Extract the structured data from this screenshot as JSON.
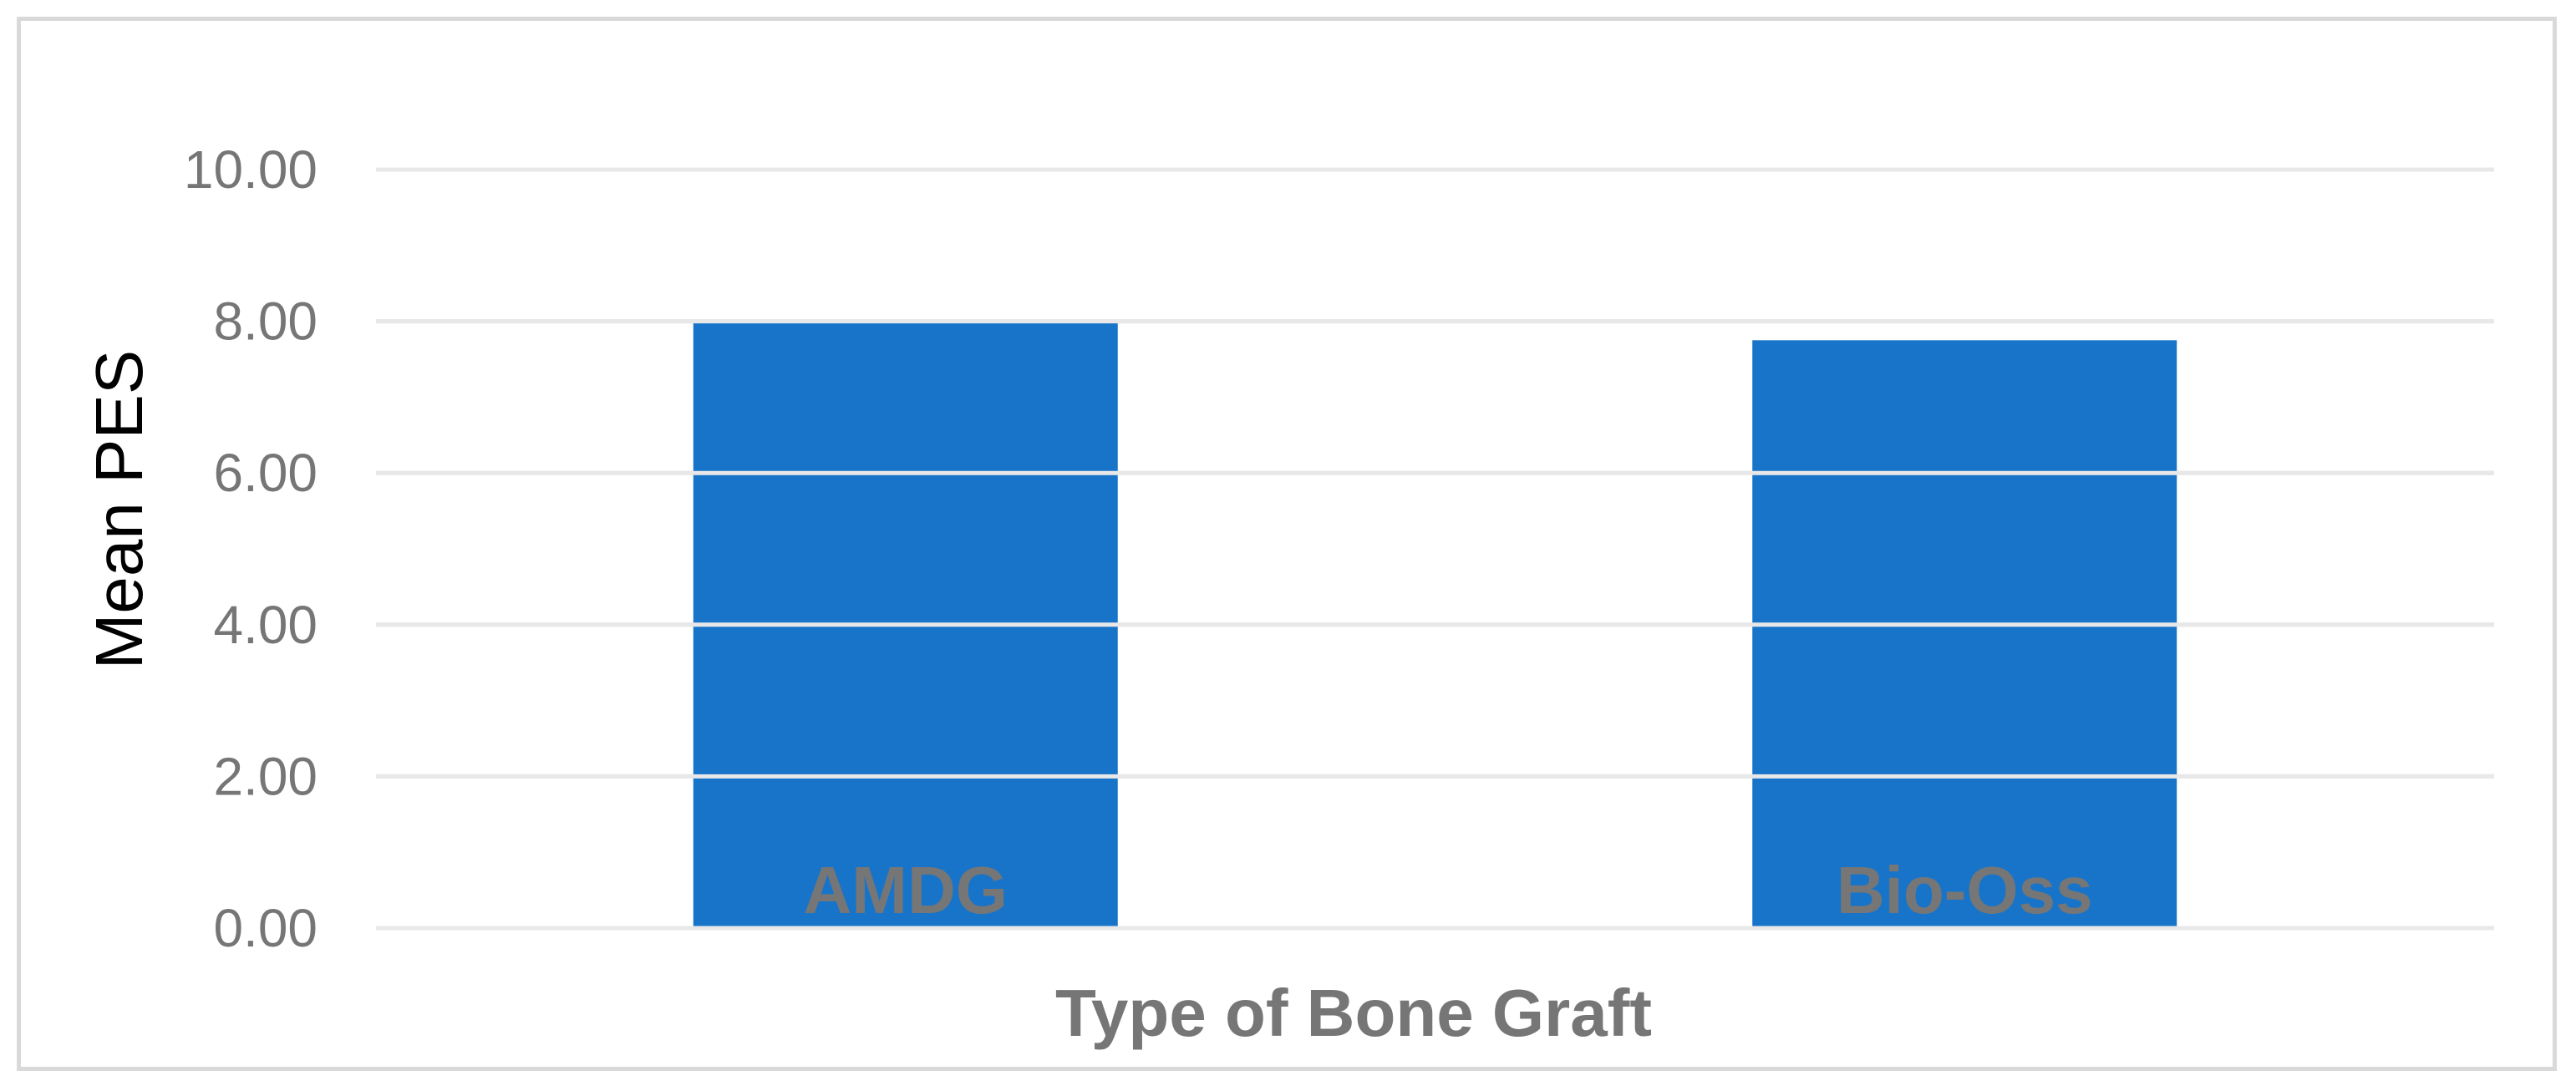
{
  "chart_data": {
    "type": "bar",
    "categories": [
      "AMDG",
      "Bio-Oss"
    ],
    "values": [
      8.0,
      7.75
    ],
    "xlabel": "Type of Bone Graft",
    "ylabel": "Mean PES",
    "ylim": [
      0,
      10
    ],
    "yticks": [
      "0.00",
      "2.00",
      "4.00",
      "6.00",
      "8.00",
      "10.00"
    ],
    "grid": true,
    "legend": "none",
    "colors": {
      "bar": "#1874C9",
      "grid": "#d9d9d9",
      "tick_text": "#767676",
      "category_text": "#767676"
    }
  }
}
